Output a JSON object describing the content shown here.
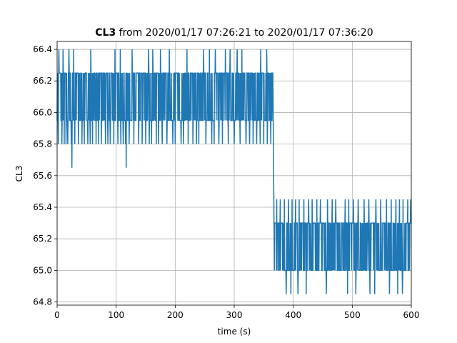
{
  "chart_data": {
    "type": "line",
    "title_bold": "CL3",
    "title_rest": " from 2020/01/17 07:26:21 to 2020/01/17 07:36:20",
    "xlabel": "time (s)",
    "ylabel": "CL3",
    "xlim": [
      0,
      600
    ],
    "ylim": [
      64.78,
      66.45
    ],
    "xticks": [
      0,
      100,
      200,
      300,
      400,
      500,
      600
    ],
    "yticks": [
      64.8,
      65.0,
      65.2,
      65.4,
      65.6,
      65.8,
      66.0,
      66.2,
      66.4
    ],
    "grid": true,
    "color": "#1f77b4",
    "series": [
      {
        "segments": [
          {
            "x_range": [
              0,
              366
            ],
            "band": [
              65.95,
              66.25
            ],
            "spikes_high": [
              66.4
            ],
            "spikes_low": [
              65.8,
              65.65
            ]
          },
          {
            "x_range": [
              366,
              368
            ],
            "transition": [
              66.0,
              65.0
            ]
          },
          {
            "x_range": [
              368,
              600
            ],
            "band": [
              65.0,
              65.3
            ],
            "spikes_high": [
              65.45
            ],
            "spikes_low": [
              64.85
            ]
          }
        ],
        "high_spike_times_1": [
          3,
          10,
          20,
          28,
          57,
          98,
          107,
          127,
          155,
          162,
          175,
          190,
          220,
          248,
          258,
          268,
          285,
          293,
          305,
          313,
          345,
          355
        ],
        "low_spike_times_1": [
          2,
          8,
          12,
          15,
          18,
          24,
          30,
          36,
          42,
          46,
          52,
          56,
          60,
          66,
          70,
          75,
          82,
          86,
          90,
          96,
          103,
          108,
          112,
          116,
          122,
          130,
          138,
          144,
          150,
          156,
          160,
          168,
          172,
          178,
          186,
          196,
          200,
          210,
          214,
          222,
          230,
          236,
          240,
          252,
          262,
          266,
          274,
          280,
          290,
          300,
          310,
          320,
          326,
          332,
          338,
          344,
          350,
          356,
          362
        ],
        "deep_dip_times_1": [
          25,
          117
        ],
        "high_spike_times_2": [
          372,
          378,
          385,
          392,
          398,
          404,
          410,
          418,
          426,
          432,
          440,
          446,
          458,
          466,
          472,
          488,
          494,
          502,
          510,
          520,
          528,
          540,
          548,
          558,
          566,
          574,
          580,
          586,
          594,
          599
        ],
        "low_spike_times_2": [
          367,
          388,
          396,
          408,
          422,
          456,
          492,
          506,
          530,
          538,
          540,
          563,
          577,
          585
        ]
      }
    ]
  }
}
